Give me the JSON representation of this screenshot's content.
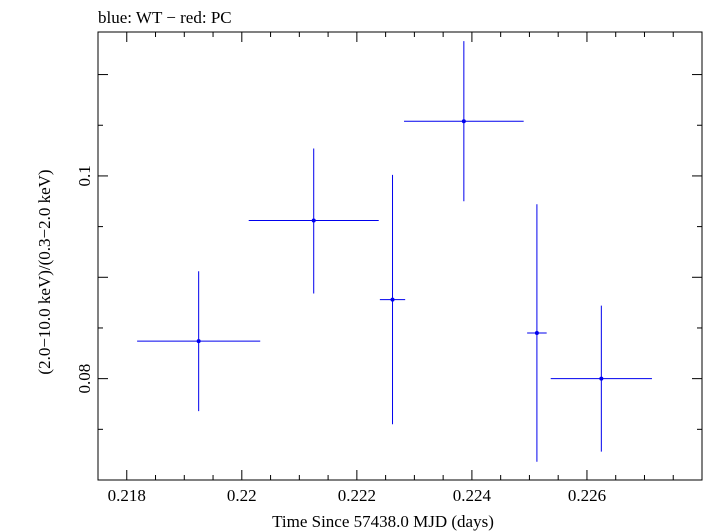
{
  "chart_data": {
    "type": "scatter",
    "title": "blue: WT − red: PC",
    "xlabel": "Time Since 57438.0 MJD (days)",
    "ylabel": "(2.0−10.0 keV)/(0.3−2.0 keV)",
    "xlim": [
      0.2175,
      0.228
    ],
    "ylim": [
      0.07,
      0.1142
    ],
    "x_ticks": [
      0.218,
      0.22,
      0.222,
      0.224,
      0.226
    ],
    "x_tick_labels": [
      "0.218",
      "0.22",
      "0.222",
      "0.224",
      "0.226"
    ],
    "y_ticks": [
      0.08,
      0.1
    ],
    "y_tick_labels": [
      "0.08",
      "0.1"
    ],
    "series": [
      {
        "color": "#0000ee",
        "points": [
          {
            "x": 0.21925,
            "xerr": 0.00107,
            "y": 0.0837,
            "yerr_low": 0.0069,
            "yerr_high": 0.0069
          },
          {
            "x": 0.22125,
            "xerr": 0.00113,
            "y": 0.0956,
            "yerr_low": 0.0072,
            "yerr_high": 0.0071
          },
          {
            "x": 0.22262,
            "xerr": 0.00022,
            "y": 0.0878,
            "yerr_low": 0.0123,
            "yerr_high": 0.0123
          },
          {
            "x": 0.22386,
            "xerr": 0.00104,
            "y": 0.1054,
            "yerr_low": 0.0079,
            "yerr_high": 0.0079
          },
          {
            "x": 0.22513,
            "xerr": 0.00017,
            "y": 0.0845,
            "yerr_low": 0.0127,
            "yerr_high": 0.0127
          },
          {
            "x": 0.22625,
            "xerr": 0.00088,
            "y": 0.08,
            "yerr_low": 0.0072,
            "yerr_high": 0.0072
          }
        ]
      }
    ]
  }
}
